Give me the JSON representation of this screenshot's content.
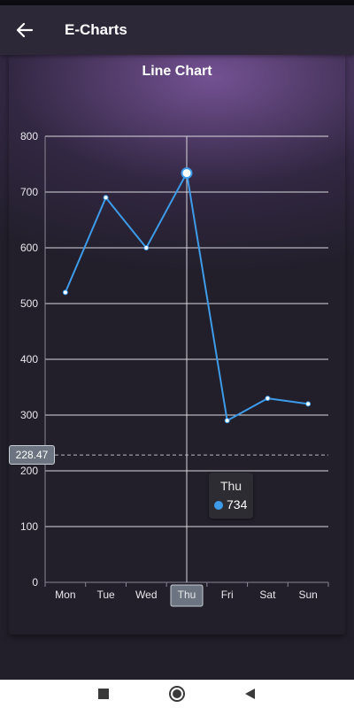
{
  "app_bar": {
    "title": "E-Charts",
    "back_icon": "arrow-back-icon"
  },
  "colors": {
    "series": "#3d9be9",
    "background": "#221f2b",
    "app_bar": "#2c2838",
    "accent_glow": "#7d58a0"
  },
  "chart_data": {
    "type": "line",
    "title": "Line Chart",
    "categories": [
      "Mon",
      "Tue",
      "Wed",
      "Thu",
      "Fri",
      "Sat",
      "Sun"
    ],
    "values": [
      520,
      690,
      600,
      734,
      290,
      330,
      320
    ],
    "ylim": [
      0,
      800
    ],
    "yticks": [
      0,
      100,
      200,
      300,
      400,
      500,
      600,
      700,
      800
    ],
    "grid": true,
    "highlighted_category": "Thu",
    "reference_line": {
      "value": 228.47,
      "label": "228.47",
      "style": "dashed"
    },
    "tooltip": {
      "category": "Thu",
      "value": "734"
    }
  },
  "nav": {
    "items": [
      "recents-square-icon",
      "home-circle-icon",
      "back-triangle-icon"
    ]
  }
}
